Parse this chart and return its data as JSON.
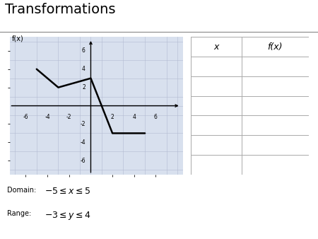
{
  "title": "Transformations",
  "ylabel": "f(x)",
  "graph_xlim": [
    -7.5,
    8.5
  ],
  "graph_ylim": [
    -7.5,
    7.5
  ],
  "xticks": [
    -6,
    -4,
    -2,
    2,
    4,
    6
  ],
  "yticks": [
    -6,
    -4,
    -2,
    2,
    4,
    6
  ],
  "line_points_x": [
    -5,
    -3,
    0,
    2,
    5
  ],
  "line_points_y": [
    4,
    2,
    3,
    -3,
    -3
  ],
  "line_color": "black",
  "line_width": 1.8,
  "grid_color": "#b0b8cf",
  "grid_alpha": 0.9,
  "bg_color": "#d8e0ee",
  "table_x_label": "x",
  "table_fx_label": "f(x)",
  "table_rows": 6,
  "domain_text": "$-5 \\leq x \\leq 5$",
  "range_text": "$-3 \\leq y \\leq 4$",
  "domain_label": "Domain:",
  "range_label": "Range:",
  "title_fontsize": 14,
  "tick_fontsize": 5.5,
  "label_fontsize": 7,
  "domain_fontsize": 9,
  "table_header_fontsize": 9
}
